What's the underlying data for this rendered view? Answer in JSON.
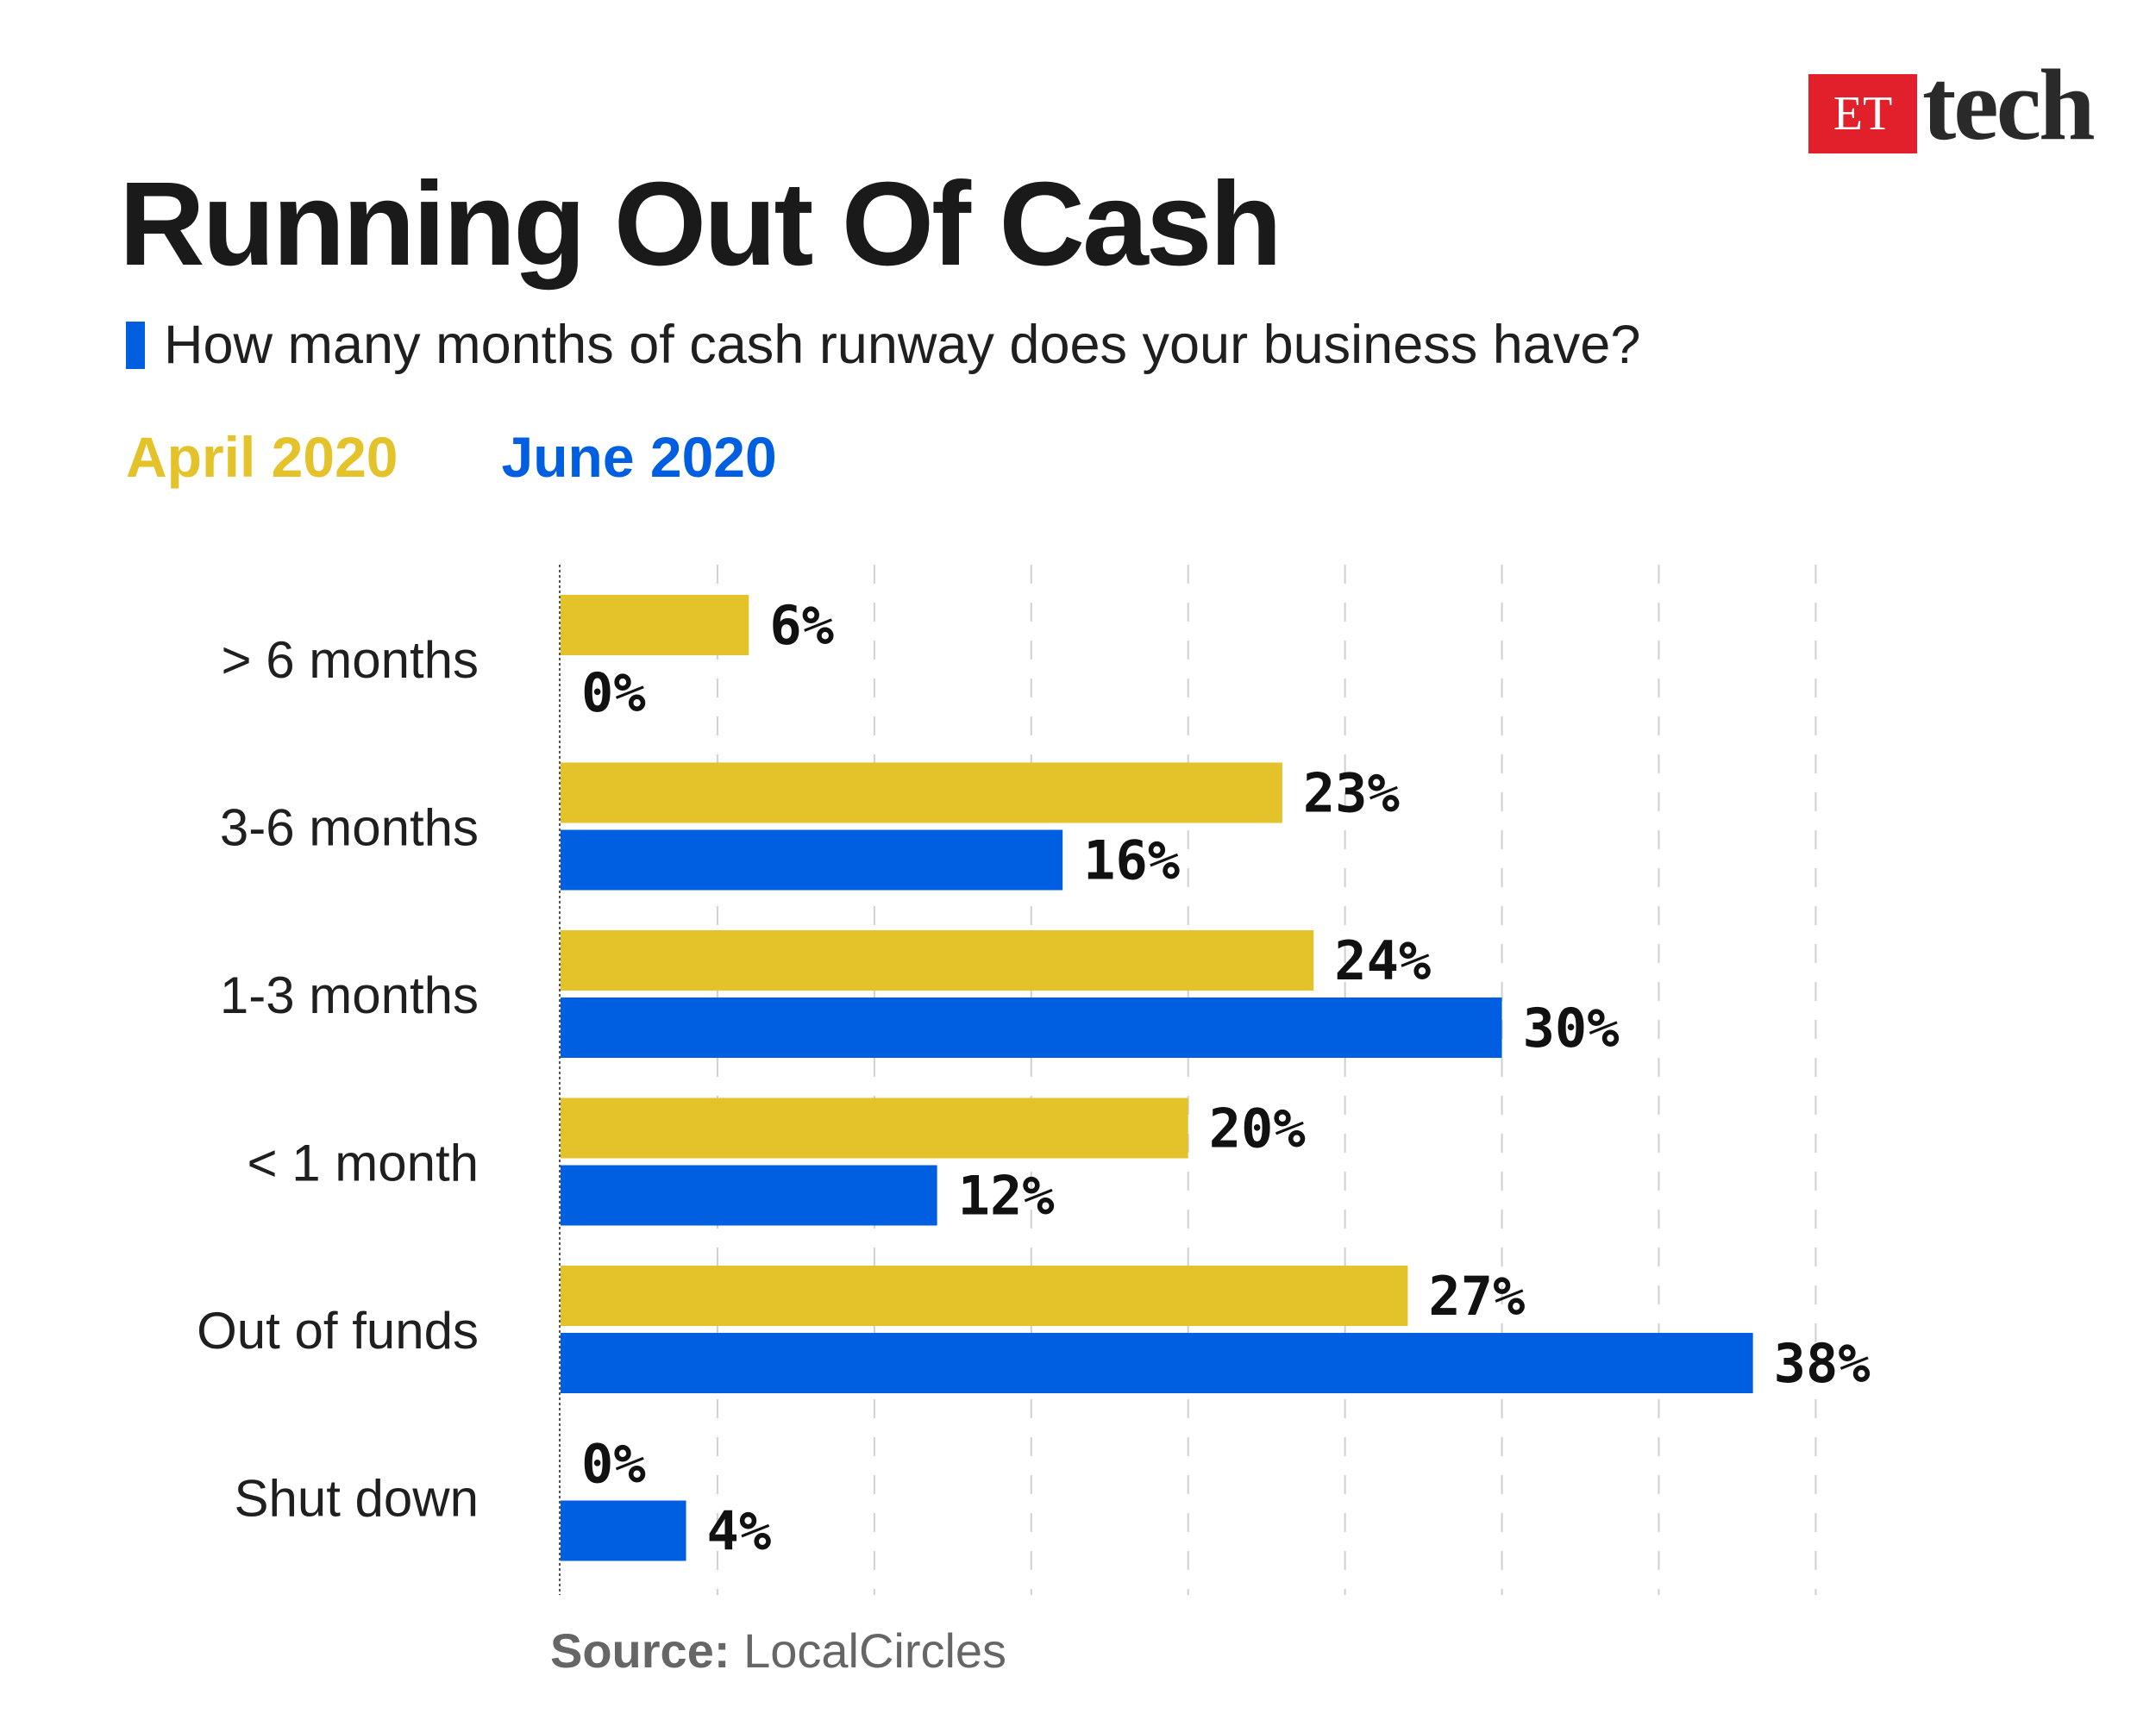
{
  "logo": {
    "badge": "ET",
    "word": "tech"
  },
  "title": "Running Out Of Cash",
  "subtitle": "How many months of cash runway does your business have?",
  "colors": {
    "april": "#e3c22a",
    "june": "#005ee0",
    "grid": "#cfcfcf",
    "axis": "#555555"
  },
  "source": {
    "label": "Source:",
    "value": "LocalCircles"
  },
  "chart_data": {
    "type": "bar",
    "orientation": "horizontal",
    "categories": [
      "> 6 months",
      "3-6 months",
      "1-3 months",
      "< 1 month",
      "Out of funds",
      "Shut down"
    ],
    "series": [
      {
        "name": "April 2020",
        "values": [
          6,
          23,
          24,
          20,
          27,
          0
        ]
      },
      {
        "name": "June 2020",
        "values": [
          0,
          16,
          30,
          12,
          38,
          4
        ]
      }
    ],
    "value_suffix": "%",
    "xlim": [
      0,
      41.5
    ],
    "grid": true,
    "legend_placement": "top-left"
  }
}
